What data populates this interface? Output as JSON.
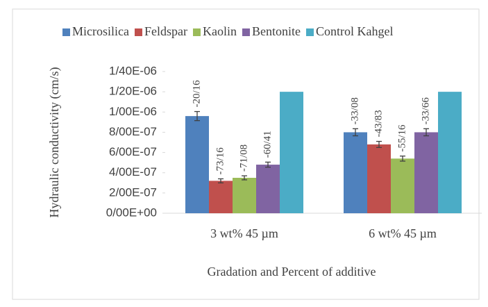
{
  "chart_data": {
    "type": "bar",
    "y_label": "Hydraulic conductivity (cm/s)",
    "x_label": "Gradation and Percent of additive",
    "categories": [
      "3 wt% 45 µm",
      "6 wt% 45 µm"
    ],
    "series": [
      {
        "name": "Microsilica",
        "color": "#4f81bd",
        "values": [
          9.6e-07,
          8e-07
        ],
        "errors": [
          4.5e-08,
          3.5e-08
        ],
        "bar_labels": [
          "-20/16",
          "-33/08"
        ]
      },
      {
        "name": "Feldspar",
        "color": "#c0504d",
        "values": [
          3.2e-07,
          6.8e-07
        ],
        "errors": [
          2e-08,
          3e-08
        ],
        "bar_labels": [
          "-73/16",
          "-43/83"
        ]
      },
      {
        "name": "Kaolin",
        "color": "#9bbb59",
        "values": [
          3.5e-07,
          5.4e-07
        ],
        "errors": [
          2e-08,
          2.5e-08
        ],
        "bar_labels": [
          "-71/08",
          "-55/16"
        ]
      },
      {
        "name": "Bentonite",
        "color": "#8064a2",
        "values": [
          4.8e-07,
          8e-07
        ],
        "errors": [
          2.5e-08,
          3.5e-08
        ],
        "bar_labels": [
          "-60/41",
          "-33/66"
        ]
      },
      {
        "name": "Control Kahgel",
        "color": "#4bacc6",
        "values": [
          1.2e-06,
          1.2e-06
        ]
      }
    ],
    "ylim": [
      0,
      1.4e-06
    ],
    "yticks": [
      {
        "value": 0,
        "label": "0/00E+00"
      },
      {
        "value": 2e-07,
        "label": "2/00E-07"
      },
      {
        "value": 4e-07,
        "label": "4/00E-07"
      },
      {
        "value": 6e-07,
        "label": "6/00E-07"
      },
      {
        "value": 8e-07,
        "label": "8/00E-07"
      },
      {
        "value": 1e-06,
        "label": "1/00E-06"
      },
      {
        "value": 1.2e-06,
        "label": "1/20E-06"
      },
      {
        "value": 1.4e-06,
        "label": "1/40E-06"
      }
    ],
    "legend": "top"
  }
}
